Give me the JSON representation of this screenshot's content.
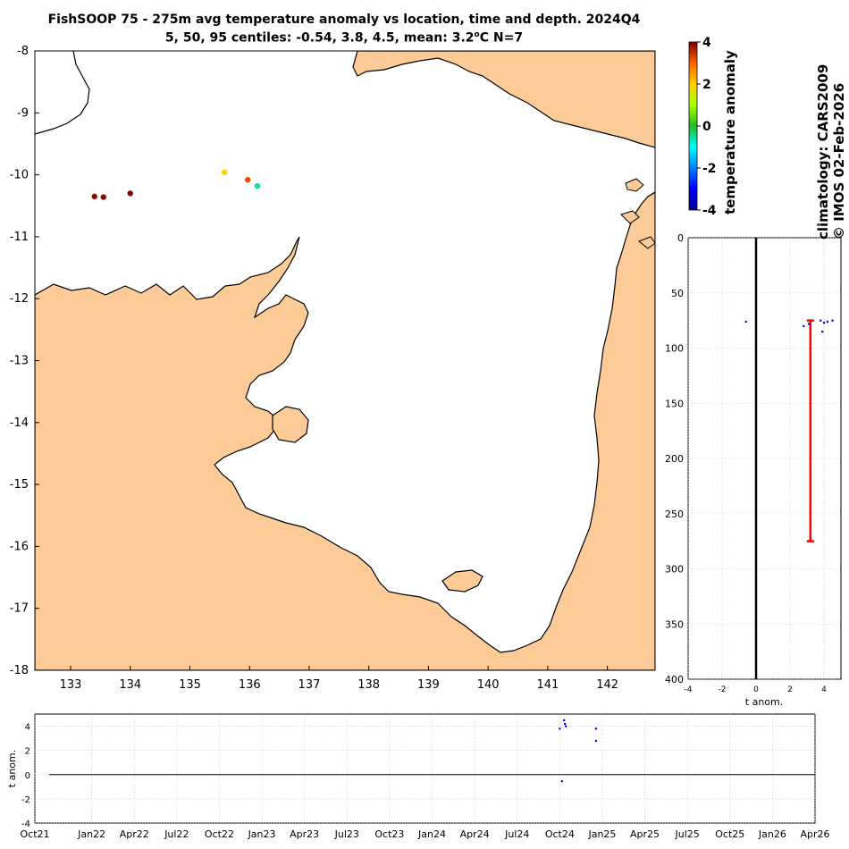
{
  "title": "FishSOOP 75 - 275m avg temperature anomaly vs location, time and depth. 2024Q4",
  "subtitle_prefix": "5, 50, 95 centiles: -0.54, 3.8, 4.5, mean: 3.2",
  "subtitle_unit": "o",
  "subtitle_suffix": "C N=7",
  "colorbar": {
    "label": "temperature anomaly",
    "ticks": [
      "4",
      "2",
      "0",
      "-2",
      "-4"
    ],
    "min": -4,
    "max": 4
  },
  "side_text": {
    "climatology": "climatology: CARS2009",
    "copyright": "© IMOS 02-Feb-2026"
  },
  "colors": {
    "land": "#FCCB98",
    "coast": "#000000",
    "depth_bar": "#FF0000",
    "dots": "#0000FF",
    "zero_line": "#000000"
  },
  "chart_data": [
    {
      "type": "scatter",
      "name": "map",
      "xlim": [
        132.4,
        142.8
      ],
      "ylim": [
        -18,
        -8
      ],
      "x_ticks": [
        "133",
        "134",
        "135",
        "136",
        "137",
        "138",
        "139",
        "140",
        "141",
        "142"
      ],
      "y_ticks": [
        "-8",
        "-9",
        "-10",
        "-11",
        "-12",
        "-13",
        "-14",
        "-15",
        "-16",
        "-17",
        "-18"
      ],
      "points": [
        {
          "lon": 133.4,
          "lat": -10.35,
          "anom": 3.9
        },
        {
          "lon": 133.55,
          "lat": -10.36,
          "anom": 3.9
        },
        {
          "lon": 134.0,
          "lat": -10.3,
          "anom": 4.3
        },
        {
          "lon": 135.58,
          "lat": -9.96,
          "anom": 2.0
        },
        {
          "lon": 135.97,
          "lat": -10.08,
          "anom": 3.2
        },
        {
          "lon": 136.13,
          "lat": -10.18,
          "anom": -0.54
        }
      ]
    },
    {
      "type": "scatter",
      "name": "depth-profile",
      "xlabel": "t anom.",
      "xlim": [
        -4,
        5
      ],
      "ylim": [
        0,
        400
      ],
      "x_ticks": [
        "-4",
        "-2",
        "0",
        "2",
        "4"
      ],
      "y_ticks": [
        "0",
        "50",
        "100",
        "150",
        "200",
        "250",
        "300",
        "350",
        "400"
      ],
      "points": [
        {
          "x": -0.6,
          "y": 76
        },
        {
          "x": 2.8,
          "y": 80
        },
        {
          "x": 3.1,
          "y": 78
        },
        {
          "x": 3.8,
          "y": 75
        },
        {
          "x": 3.9,
          "y": 85
        },
        {
          "x": 4.0,
          "y": 77
        },
        {
          "x": 4.2,
          "y": 76
        },
        {
          "x": 4.5,
          "y": 75
        }
      ],
      "mean_bar": {
        "x": 3.2,
        "y_top": 75,
        "y_bottom": 275
      }
    },
    {
      "type": "scatter",
      "name": "time-series",
      "ylabel": "t anom.",
      "ylim": [
        -4,
        5
      ],
      "y_ticks": [
        "4",
        "2",
        "0",
        "-2",
        "-4"
      ],
      "x_ticks": [
        "Oct21",
        "Jan22",
        "Apr22",
        "Jul22",
        "Oct22",
        "Jan23",
        "Apr23",
        "Jul23",
        "Oct23",
        "Jan24",
        "Apr24",
        "Jul24",
        "Oct24",
        "Jan25",
        "Apr25",
        "Jul25",
        "Oct25",
        "Jan26",
        "Apr26"
      ],
      "points": [
        {
          "t": 12.0,
          "y": 3.8
        },
        {
          "t": 12.1,
          "y": 4.5
        },
        {
          "t": 12.12,
          "y": 4.2
        },
        {
          "t": 12.14,
          "y": 4.0
        },
        {
          "t": 12.05,
          "y": -0.54
        },
        {
          "t": 12.85,
          "y": 3.8
        },
        {
          "t": 12.85,
          "y": 2.8
        }
      ]
    }
  ]
}
